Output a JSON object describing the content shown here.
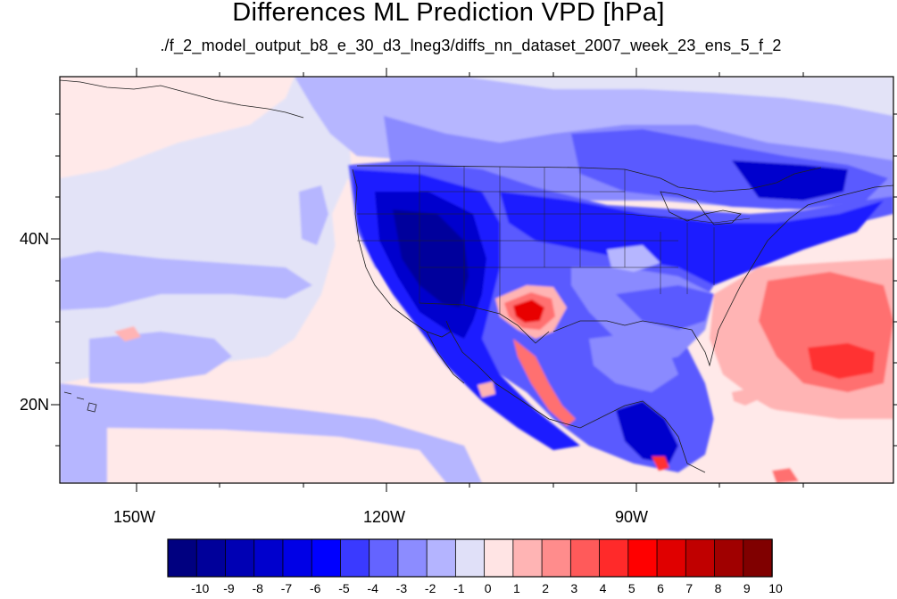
{
  "title": "Differences ML Prediction VPD [hPa]",
  "subtitle": "./f_2_model_output_b8_e_30_d3_lneg3/diffs_nn_dataset_2007_week_23_ens_5_f_2",
  "axes": {
    "lat_labels": [
      "40N",
      "20N"
    ],
    "lon_labels": [
      "150W",
      "120W",
      "90W"
    ]
  },
  "colorbar": {
    "labels": [
      "-10",
      "-9",
      "-8",
      "-7",
      "-6",
      "-5",
      "-4",
      "-3",
      "-2",
      "-1",
      "0",
      "1",
      "2",
      "3",
      "4",
      "5",
      "6",
      "7",
      "8",
      "9",
      "10"
    ],
    "colors": [
      "#000080",
      "#00009a",
      "#0000b4",
      "#0000cd",
      "#0000e6",
      "#0000ff",
      "#3a3aff",
      "#6464ff",
      "#8c8cff",
      "#b4b4ff",
      "#e0e0f8",
      "#ffe4e4",
      "#ffb4b4",
      "#ff8c8c",
      "#ff5a5a",
      "#ff2a2a",
      "#ff0000",
      "#e00000",
      "#c00000",
      "#a00000",
      "#800000"
    ]
  },
  "map": {
    "lon_range": [
      -163,
      -67
    ],
    "lat_range": [
      10,
      59
    ],
    "colors": {
      "ocean_base": "#ffe9e9",
      "neutral_blue": "#e3e3f7",
      "light_blue": "#b6b6ff",
      "mid_blue": "#8a8aff",
      "blue": "#5a5aff",
      "strong_blue": "#1e1eff",
      "dark_blue": "#0000cd",
      "navy": "#00009c",
      "light_red": "#ffb4b4",
      "red": "#ff7070",
      "strong_red": "#ff3030",
      "deep_red": "#e80000",
      "coast": "#202020"
    }
  }
}
